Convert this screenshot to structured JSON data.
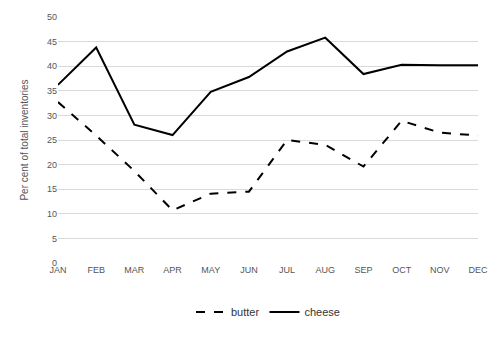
{
  "chart_data": {
    "type": "line",
    "y_label": "Per cent of total inventories",
    "categories": [
      "JAN",
      "FEB",
      "MAR",
      "APR",
      "MAY",
      "JUN",
      "JUL",
      "AUG",
      "SEP",
      "OCT",
      "NOV",
      "DEC"
    ],
    "series": [
      {
        "name": "butter",
        "color": "#000000",
        "line_style": "dashed",
        "values": [
          32.7,
          25.9,
          18.7,
          10.7,
          14.1,
          14.5,
          25.0,
          24.0,
          19.6,
          28.9,
          26.5,
          25.9
        ]
      },
      {
        "name": "cheese",
        "color": "#000000",
        "line_style": "solid",
        "values": [
          36.2,
          43.8,
          28.1,
          26.0,
          34.8,
          37.8,
          43.0,
          45.8,
          38.4,
          40.3,
          40.2,
          40.2
        ]
      }
    ],
    "ylim": [
      0,
      50
    ],
    "yticks": [
      0,
      5,
      10,
      15,
      20,
      25,
      30,
      35,
      40,
      45,
      50
    ],
    "grid": true,
    "legend": "bottom"
  }
}
